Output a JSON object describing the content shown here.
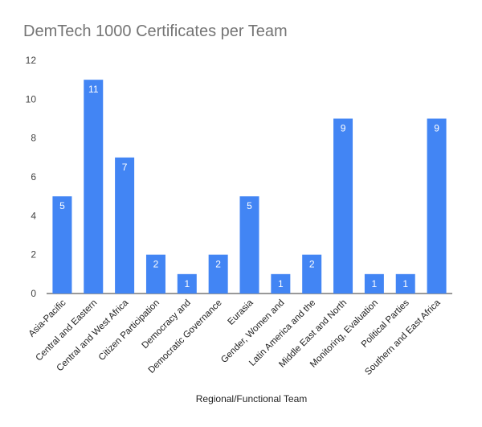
{
  "chart_data": {
    "type": "bar",
    "title": "DemTech 1000 Certificates per Team",
    "xlabel": "Regional/Functional Team",
    "ylabel": "",
    "ylim": [
      0,
      12
    ],
    "yticks": [
      0,
      2,
      4,
      6,
      8,
      10,
      12
    ],
    "grid": false,
    "legend": "none",
    "bar_color": "#4285f4",
    "categories": [
      "Asia-Pacific",
      "Central and Eastern",
      "Central and West Africa",
      "Citizen Participation",
      "Democracy and",
      "Democratic Governance",
      "Eurasia",
      "Gender, Women and",
      "Latin America and the",
      "Middle East and North",
      "Monitoring, Evaluation",
      "Political Parties",
      "Southern and East Africa"
    ],
    "values": [
      5,
      11,
      7,
      2,
      1,
      2,
      5,
      1,
      2,
      9,
      1,
      1,
      9
    ]
  }
}
